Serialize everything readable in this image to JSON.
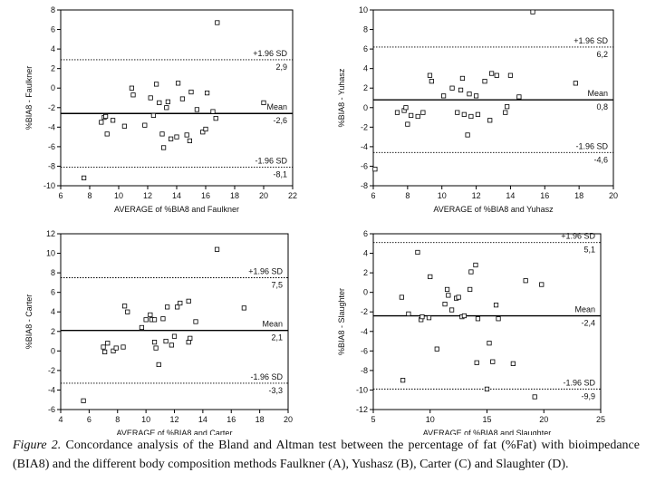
{
  "chart_data": [
    {
      "type": "scatter",
      "panel": "A",
      "xlabel": "AVERAGE of %BIA8 and Faulkner",
      "ylabel": "%BIA8 - Faulkner",
      "xlim": [
        6,
        22
      ],
      "ylim": [
        -10,
        8
      ],
      "xticks": [
        6,
        8,
        10,
        12,
        14,
        16,
        18,
        20,
        22
      ],
      "yticks": [
        -10,
        -8,
        -6,
        -4,
        -2,
        0,
        2,
        4,
        6,
        8
      ],
      "lines": [
        {
          "label": "+1.96 SD",
          "value_label": "2,9",
          "y": 2.9,
          "style": "dotted"
        },
        {
          "label": "Mean",
          "value_label": "-2,6",
          "y": -2.6,
          "style": "solid"
        },
        {
          "label": "-1.96 SD",
          "value_label": "-8,1",
          "y": -8.1,
          "style": "dotted"
        }
      ],
      "points": [
        [
          7.6,
          -9.2
        ],
        [
          8.8,
          -3.5
        ],
        [
          9.0,
          -3.0
        ],
        [
          9.1,
          -2.9
        ],
        [
          9.2,
          -4.7
        ],
        [
          9.6,
          -3.3
        ],
        [
          10.4,
          -3.9
        ],
        [
          10.9,
          0.0
        ],
        [
          11.0,
          -0.7
        ],
        [
          11.8,
          -3.8
        ],
        [
          12.2,
          -1.0
        ],
        [
          12.4,
          -2.8
        ],
        [
          12.6,
          0.4
        ],
        [
          12.8,
          -1.5
        ],
        [
          13.0,
          -4.7
        ],
        [
          13.1,
          -6.1
        ],
        [
          13.3,
          -2.0
        ],
        [
          13.4,
          -1.4
        ],
        [
          13.6,
          -5.2
        ],
        [
          14.0,
          -5.0
        ],
        [
          14.1,
          0.5
        ],
        [
          14.4,
          -1.1
        ],
        [
          14.7,
          -4.8
        ],
        [
          14.9,
          -5.4
        ],
        [
          15.0,
          -0.4
        ],
        [
          15.4,
          -2.2
        ],
        [
          15.8,
          -4.5
        ],
        [
          16.0,
          -4.2
        ],
        [
          16.1,
          -0.5
        ],
        [
          16.5,
          -2.4
        ],
        [
          16.7,
          -3.1
        ],
        [
          16.8,
          6.7
        ],
        [
          20.0,
          -1.5
        ]
      ]
    },
    {
      "type": "scatter",
      "panel": "B",
      "xlabel": "AVERAGE of %BIA8 and Yuhasz",
      "ylabel": "%BIA8 - Yuhasz",
      "xlim": [
        6,
        20
      ],
      "ylim": [
        -8,
        10
      ],
      "xticks": [
        6,
        8,
        10,
        12,
        14,
        16,
        18,
        20
      ],
      "yticks": [
        -8,
        -6,
        -4,
        -2,
        0,
        2,
        4,
        6,
        8,
        10
      ],
      "lines": [
        {
          "label": "+1.96 SD",
          "value_label": "6,2",
          "y": 6.2,
          "style": "dotted"
        },
        {
          "label": "Mean",
          "value_label": "0,8",
          "y": 0.8,
          "style": "solid"
        },
        {
          "label": "-1.96 SD",
          "value_label": "-4,6",
          "y": -4.6,
          "style": "dotted"
        }
      ],
      "points": [
        [
          6.1,
          -6.3
        ],
        [
          7.4,
          -0.5
        ],
        [
          7.8,
          -0.3
        ],
        [
          7.9,
          0.0
        ],
        [
          8.0,
          -1.7
        ],
        [
          8.2,
          -0.8
        ],
        [
          8.6,
          -0.9
        ],
        [
          8.9,
          -0.5
        ],
        [
          9.3,
          3.3
        ],
        [
          9.4,
          2.7
        ],
        [
          10.1,
          1.2
        ],
        [
          10.6,
          2.0
        ],
        [
          10.9,
          -0.5
        ],
        [
          11.1,
          1.8
        ],
        [
          11.2,
          3.0
        ],
        [
          11.3,
          -0.7
        ],
        [
          11.5,
          -2.8
        ],
        [
          11.6,
          1.4
        ],
        [
          11.7,
          -0.9
        ],
        [
          12.0,
          1.2
        ],
        [
          12.1,
          -0.7
        ],
        [
          12.5,
          2.7
        ],
        [
          12.8,
          -1.3
        ],
        [
          12.9,
          3.5
        ],
        [
          13.2,
          3.3
        ],
        [
          13.7,
          -0.5
        ],
        [
          13.8,
          0.1
        ],
        [
          14.0,
          3.3
        ],
        [
          14.5,
          1.1
        ],
        [
          15.3,
          9.8
        ],
        [
          17.8,
          2.5
        ]
      ]
    },
    {
      "type": "scatter",
      "panel": "C",
      "xlabel": "AVERAGE of %BIA8 and Carter",
      "ylabel": "%BIA8 - Carter",
      "xlim": [
        4,
        20
      ],
      "ylim": [
        -6,
        12
      ],
      "xticks": [
        4,
        6,
        8,
        10,
        12,
        14,
        16,
        18,
        20
      ],
      "yticks": [
        -6,
        -4,
        -2,
        0,
        2,
        4,
        6,
        8,
        10,
        12
      ],
      "lines": [
        {
          "label": "+1.96 SD",
          "value_label": "7,5",
          "y": 7.5,
          "style": "dotted"
        },
        {
          "label": "Mean",
          "value_label": "2,1",
          "y": 2.1,
          "style": "solid"
        },
        {
          "label": "-1.96 SD",
          "value_label": "-3,3",
          "y": -3.3,
          "style": "dotted"
        }
      ],
      "points": [
        [
          5.6,
          -5.1
        ],
        [
          7.0,
          0.4
        ],
        [
          7.1,
          -0.1
        ],
        [
          7.3,
          0.8
        ],
        [
          7.7,
          0.0
        ],
        [
          7.9,
          0.3
        ],
        [
          8.4,
          0.4
        ],
        [
          8.5,
          4.6
        ],
        [
          8.7,
          4.0
        ],
        [
          9.7,
          2.4
        ],
        [
          10.0,
          3.2
        ],
        [
          10.3,
          3.7
        ],
        [
          10.4,
          3.2
        ],
        [
          10.6,
          0.9
        ],
        [
          10.7,
          0.3
        ],
        [
          10.9,
          -1.4
        ],
        [
          10.6,
          3.2
        ],
        [
          11.2,
          3.3
        ],
        [
          11.4,
          1.0
        ],
        [
          11.5,
          4.5
        ],
        [
          11.8,
          0.6
        ],
        [
          12.0,
          1.5
        ],
        [
          12.2,
          4.5
        ],
        [
          12.4,
          4.9
        ],
        [
          13.0,
          5.1
        ],
        [
          13.0,
          0.9
        ],
        [
          13.1,
          1.3
        ],
        [
          13.5,
          3.0
        ],
        [
          15.0,
          10.4
        ],
        [
          16.9,
          4.4
        ]
      ]
    },
    {
      "type": "scatter",
      "panel": "D",
      "xlabel": "AVERAGE of %BIA8 and Slaughter",
      "ylabel": "%BIA8 - Slaughter",
      "xlim": [
        5,
        25
      ],
      "ylim": [
        -12,
        6
      ],
      "xticks": [
        5,
        10,
        15,
        20,
        25
      ],
      "yticks": [
        -12,
        -10,
        -8,
        -6,
        -4,
        -2,
        0,
        2,
        4,
        6
      ],
      "lines": [
        {
          "label": "+1.96 SD",
          "value_label": "5,1",
          "y": 5.1,
          "style": "dotted"
        },
        {
          "label": "Mean",
          "value_label": "-2,4",
          "y": -2.4,
          "style": "solid"
        },
        {
          "label": "-1.96 SD",
          "value_label": "-9,9",
          "y": -9.9,
          "style": "dotted"
        }
      ],
      "points": [
        [
          7.5,
          -0.5
        ],
        [
          7.6,
          -9.0
        ],
        [
          8.1,
          -2.2
        ],
        [
          8.9,
          4.1
        ],
        [
          9.2,
          -2.8
        ],
        [
          9.3,
          -2.5
        ],
        [
          9.9,
          -2.6
        ],
        [
          10.0,
          1.6
        ],
        [
          10.6,
          -5.8
        ],
        [
          11.3,
          -1.2
        ],
        [
          11.5,
          0.3
        ],
        [
          11.6,
          -0.3
        ],
        [
          11.9,
          -1.8
        ],
        [
          12.3,
          -0.6
        ],
        [
          12.5,
          -0.5
        ],
        [
          12.8,
          -2.5
        ],
        [
          13.0,
          -2.4
        ],
        [
          13.5,
          0.3
        ],
        [
          13.6,
          2.1
        ],
        [
          14.0,
          2.8
        ],
        [
          14.1,
          -7.2
        ],
        [
          14.2,
          -2.7
        ],
        [
          15.0,
          -9.9
        ],
        [
          15.2,
          -5.2
        ],
        [
          15.5,
          -7.1
        ],
        [
          15.8,
          -1.3
        ],
        [
          16.0,
          -2.7
        ],
        [
          17.3,
          -7.3
        ],
        [
          18.4,
          1.2
        ],
        [
          19.2,
          -10.7
        ],
        [
          19.8,
          0.8
        ]
      ]
    }
  ],
  "caption": {
    "label": "Figure 2.",
    "text": " Concordance analysis of the Bland and Altman test between the percentage of fat (%Fat) with bioimpedance (BIA8) and the different body composition methods Faulkner (A), Yushasz (B), Carter (C) and Slaughter (D)."
  }
}
